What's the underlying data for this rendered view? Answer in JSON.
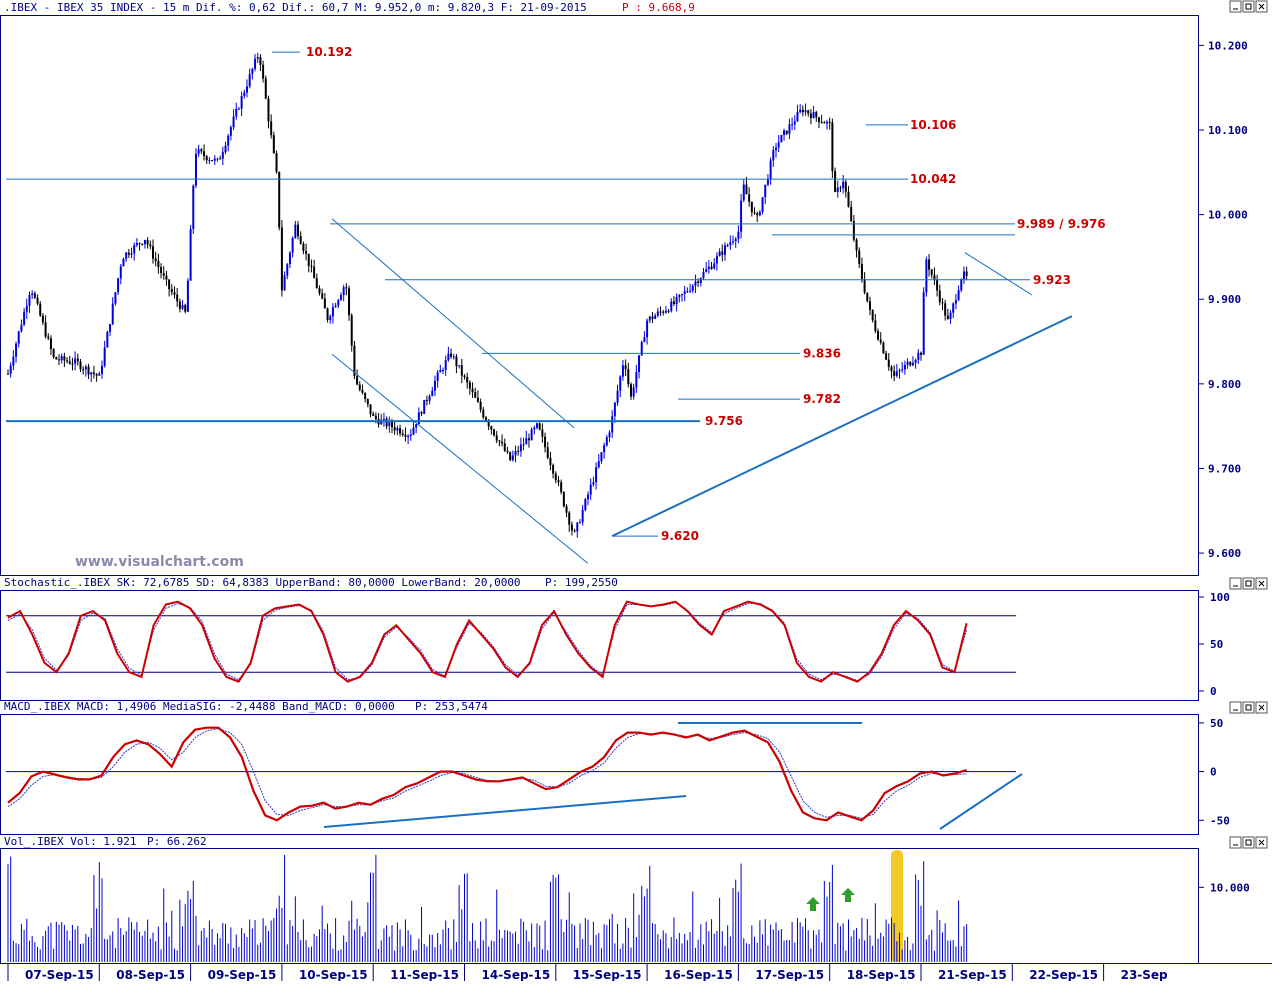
{
  "header": {
    "main_title": ".IBEX - IBEX 35 INDEX -   15 m Dif. %: 0,62 Dif.: 60,7 M: 9.952,0 m: 9.820,3 F: 21-09-2015",
    "main_price": "P : 9.668,9",
    "stoch_title": "Stochastic_.IBEX SK: 72,6785 SD: 64,8383 UpperBand: 80,0000 LowerBand: 20,0000",
    "stoch_price": "P: 199,2550",
    "macd_title": "MACD_.IBEX MACD: 1,4906 MediaSIG: -2,4488 Band_MACD: 0,0000",
    "macd_price": "P: 253,5474",
    "vol_title": "Vol_.IBEX Vol: 1.921",
    "vol_price": "P: 66.262"
  },
  "watermark": "www.visualchart.com",
  "colors": {
    "frame": "#000080",
    "price_up": "#0000dd",
    "price_dn": "#000000",
    "level": "#cc0000",
    "trend": "#1a6fc4",
    "stoch": "#cc0000",
    "macd": "#cc0000",
    "vol": "#0000cc",
    "arrow": "#2e9e2e",
    "highlight": "#f0c000"
  },
  "chart_data": [
    {
      "type": "candlestick",
      "title": "IBEX 35 INDEX - 15 m",
      "ylim": [
        9580,
        10230
      ],
      "y_ticks": [
        {
          "value": 10200,
          "label": "10.200"
        },
        {
          "value": 10100,
          "label": "10.100"
        },
        {
          "value": 10000,
          "label": "10.000"
        },
        {
          "value": 9900,
          "label": "9.900"
        },
        {
          "value": 9800,
          "label": "9.800"
        },
        {
          "value": 9700,
          "label": "9.700"
        },
        {
          "value": 9600,
          "label": "9.600"
        }
      ],
      "dates": [
        "07-Sep-15",
        "08-Sep-15",
        "09-Sep-15",
        "10-Sep-15",
        "11-Sep-15",
        "14-Sep-15",
        "15-Sep-15",
        "16-Sep-15",
        "17-Sep-15",
        "18-Sep-15",
        "21-Sep-15",
        "22-Sep-15",
        "23-Sep"
      ],
      "close_path": [
        {
          "t": 0.0,
          "v": 9812
        },
        {
          "t": 0.25,
          "v": 9915
        },
        {
          "t": 0.5,
          "v": 9830
        },
        {
          "t": 0.75,
          "v": 9825
        },
        {
          "t": 1.0,
          "v": 9808
        },
        {
          "t": 1.25,
          "v": 9950
        },
        {
          "t": 1.5,
          "v": 9972
        },
        {
          "t": 1.75,
          "v": 9915
        },
        {
          "t": 1.95,
          "v": 9882
        },
        {
          "t": 2.05,
          "v": 10075
        },
        {
          "t": 2.3,
          "v": 10062
        },
        {
          "t": 2.6,
          "v": 10150
        },
        {
          "t": 2.75,
          "v": 10192
        },
        {
          "t": 2.95,
          "v": 10040
        },
        {
          "t": 3.0,
          "v": 9912
        },
        {
          "t": 3.15,
          "v": 9988
        },
        {
          "t": 3.5,
          "v": 9878
        },
        {
          "t": 3.7,
          "v": 9920
        },
        {
          "t": 3.8,
          "v": 9805
        },
        {
          "t": 4.0,
          "v": 9760
        },
        {
          "t": 4.4,
          "v": 9740
        },
        {
          "t": 4.7,
          "v": 9808
        },
        {
          "t": 4.85,
          "v": 9836
        },
        {
          "t": 5.2,
          "v": 9765
        },
        {
          "t": 5.5,
          "v": 9710
        },
        {
          "t": 5.8,
          "v": 9750
        },
        {
          "t": 6.0,
          "v": 9690
        },
        {
          "t": 6.2,
          "v": 9620
        },
        {
          "t": 6.45,
          "v": 9700
        },
        {
          "t": 6.6,
          "v": 9750
        },
        {
          "t": 6.75,
          "v": 9832
        },
        {
          "t": 6.82,
          "v": 9782
        },
        {
          "t": 7.0,
          "v": 9875
        },
        {
          "t": 7.3,
          "v": 9895
        },
        {
          "t": 7.7,
          "v": 9940
        },
        {
          "t": 8.0,
          "v": 9980
        },
        {
          "t": 8.05,
          "v": 10035
        },
        {
          "t": 8.2,
          "v": 9992
        },
        {
          "t": 8.4,
          "v": 10080
        },
        {
          "t": 8.7,
          "v": 10125
        },
        {
          "t": 9.0,
          "v": 10106
        },
        {
          "t": 9.05,
          "v": 10020
        },
        {
          "t": 9.15,
          "v": 10042
        },
        {
          "t": 9.3,
          "v": 9950
        },
        {
          "t": 9.45,
          "v": 9880
        },
        {
          "t": 9.7,
          "v": 9808
        },
        {
          "t": 10.0,
          "v": 9838
        },
        {
          "t": 10.05,
          "v": 9950
        },
        {
          "t": 10.3,
          "v": 9872
        },
        {
          "t": 10.45,
          "v": 9930
        },
        {
          "t": 10.5,
          "v": 9925
        }
      ],
      "levels": [
        {
          "value": 10192,
          "label": "10.192"
        },
        {
          "value": 10106,
          "label": "10.106"
        },
        {
          "value": 10042,
          "label": "10.042"
        },
        {
          "value": 9989,
          "label": "9.989 / 9.976"
        },
        {
          "value": 9923,
          "label": "9.923"
        },
        {
          "value": 9836,
          "label": "9.836"
        },
        {
          "value": 9782,
          "label": "9.782"
        },
        {
          "value": 9756,
          "label": "9.756"
        },
        {
          "value": 9620,
          "label": "9.620"
        }
      ]
    },
    {
      "type": "line",
      "title": "Stochastic_.IBEX",
      "ylim": [
        0,
        100
      ],
      "y_ticks": [
        {
          "value": 100,
          "label": "100"
        },
        {
          "value": 50,
          "label": "50"
        },
        {
          "value": 0,
          "label": "0"
        }
      ],
      "bands": [
        80,
        20
      ],
      "series": [
        {
          "name": "SK",
          "values": [
            78,
            85,
            60,
            30,
            20,
            40,
            80,
            85,
            75,
            40,
            20,
            15,
            70,
            92,
            95,
            88,
            70,
            35,
            15,
            10,
            30,
            80,
            88,
            90,
            92,
            85,
            60,
            20,
            10,
            15,
            30,
            60,
            70,
            55,
            40,
            20,
            15,
            50,
            75,
            60,
            45,
            25,
            15,
            30,
            70,
            85,
            60,
            40,
            25,
            15,
            70,
            95,
            92,
            90,
            92,
            95,
            85,
            70,
            60,
            85,
            90,
            95,
            92,
            85,
            70,
            30,
            15,
            10,
            20,
            15,
            10,
            20,
            40,
            70,
            85,
            75,
            60,
            25,
            20,
            72
          ]
        },
        {
          "name": "SD",
          "values": [
            75,
            82,
            65,
            35,
            22,
            38,
            75,
            83,
            77,
            45,
            24,
            17,
            65,
            88,
            93,
            89,
            74,
            40,
            18,
            12,
            28,
            75,
            86,
            89,
            91,
            86,
            63,
            25,
            12,
            14,
            28,
            57,
            68,
            57,
            43,
            23,
            16,
            47,
            72,
            62,
            47,
            28,
            17,
            28,
            66,
            83,
            63,
            43,
            27,
            17,
            65,
            92,
            92,
            90,
            91,
            94,
            86,
            72,
            62,
            82,
            88,
            93,
            93,
            86,
            72,
            34,
            18,
            12,
            18,
            16,
            11,
            18,
            37,
            66,
            83,
            77,
            62,
            28,
            21,
            65
          ]
        }
      ]
    },
    {
      "type": "line",
      "title": "MACD_.IBEX",
      "ylim": [
        -60,
        55
      ],
      "y_ticks": [
        {
          "value": 50,
          "label": "50"
        },
        {
          "value": 0,
          "label": "0"
        },
        {
          "value": -50,
          "label": "-50"
        }
      ],
      "series": [
        {
          "name": "MACD",
          "values": [
            -32,
            -22,
            -5,
            0,
            -3,
            -6,
            -8,
            -8,
            -4,
            15,
            28,
            32,
            28,
            18,
            5,
            30,
            43,
            45,
            45,
            35,
            15,
            -20,
            -45,
            -50,
            -42,
            -36,
            -35,
            -32,
            -38,
            -36,
            -32,
            -34,
            -28,
            -24,
            -16,
            -12,
            -6,
            0,
            0,
            -4,
            -8,
            -10,
            -10,
            -8,
            -6,
            -12,
            -18,
            -16,
            -8,
            0,
            5,
            15,
            32,
            40,
            40,
            38,
            40,
            38,
            35,
            38,
            32,
            36,
            40,
            42,
            36,
            30,
            10,
            -20,
            -42,
            -48,
            -50,
            -42,
            -46,
            -50,
            -40,
            -22,
            -15,
            -10,
            -2,
            0,
            -4,
            -2,
            1.5
          ]
        },
        {
          "name": "MediaSIG",
          "values": [
            -36,
            -28,
            -14,
            -5,
            -3,
            -5,
            -7,
            -8,
            -6,
            5,
            20,
            28,
            30,
            24,
            12,
            20,
            35,
            42,
            44,
            40,
            28,
            0,
            -30,
            -44,
            -45,
            -40,
            -37,
            -34,
            -36,
            -36,
            -34,
            -34,
            -30,
            -27,
            -20,
            -15,
            -10,
            -4,
            -1,
            -2,
            -6,
            -9,
            -10,
            -9,
            -7,
            -9,
            -15,
            -16,
            -12,
            -4,
            1,
            9,
            24,
            35,
            39,
            39,
            39,
            38,
            36,
            37,
            34,
            35,
            38,
            40,
            38,
            34,
            20,
            -5,
            -30,
            -42,
            -47,
            -45,
            -45,
            -48,
            -44,
            -30,
            -20,
            -14,
            -6,
            -2,
            -3,
            -3,
            -2.4
          ]
        }
      ]
    },
    {
      "type": "bar",
      "title": "Vol_.IBEX",
      "ylim": [
        0,
        15000
      ],
      "y_ticks": [
        {
          "value": 10000,
          "label": "10.000"
        }
      ]
    }
  ]
}
